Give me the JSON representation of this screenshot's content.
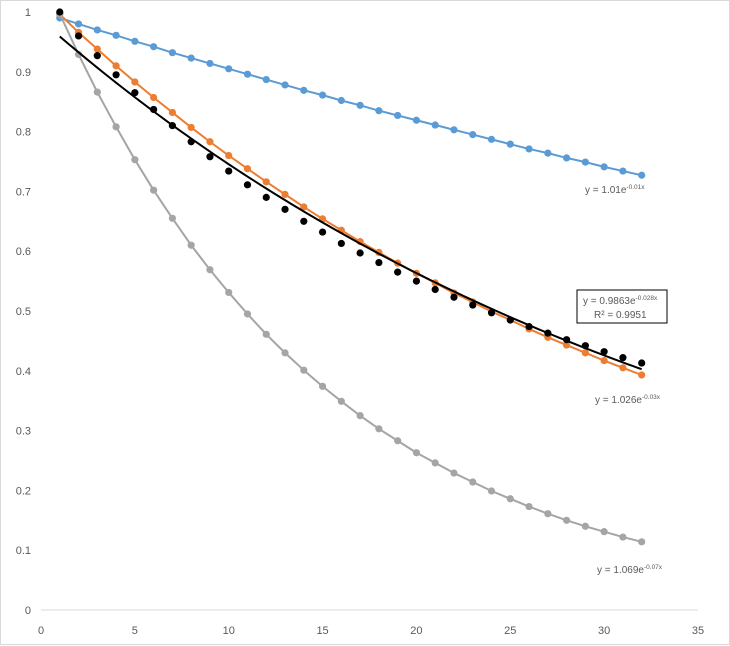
{
  "chart_data": {
    "type": "scatter",
    "title": "",
    "xlabel": "",
    "ylabel": "",
    "xlim": [
      0,
      35
    ],
    "ylim": [
      0,
      1
    ],
    "x_ticks": [
      0,
      5,
      10,
      15,
      20,
      25,
      30,
      35
    ],
    "y_ticks": [
      0,
      0.1,
      0.2,
      0.3,
      0.4,
      0.5,
      0.6,
      0.7,
      0.8,
      0.9,
      1
    ],
    "grid": false,
    "legend": "none",
    "series": [
      {
        "color": "#5b9bd5",
        "kind": "markers+line",
        "x": [
          1,
          2,
          3,
          4,
          5,
          6,
          7,
          8,
          9,
          10,
          11,
          12,
          13,
          14,
          15,
          16,
          17,
          18,
          19,
          20,
          21,
          22,
          23,
          24,
          25,
          26,
          27,
          28,
          29,
          30,
          31,
          32
        ],
        "y": [
          0.99,
          0.98,
          0.97,
          0.961,
          0.951,
          0.942,
          0.932,
          0.923,
          0.914,
          0.905,
          0.896,
          0.887,
          0.878,
          0.869,
          0.861,
          0.852,
          0.844,
          0.835,
          0.827,
          0.819,
          0.811,
          0.803,
          0.795,
          0.787,
          0.779,
          0.771,
          0.764,
          0.756,
          0.749,
          0.741,
          0.734,
          0.727
        ],
        "trendline": {
          "equation_main": "y = 1.01e",
          "equation_exp": "-0.01x"
        }
      },
      {
        "color": "#ed7d31",
        "kind": "markers+line",
        "x": [
          1,
          2,
          3,
          4,
          5,
          6,
          7,
          8,
          9,
          10,
          11,
          12,
          13,
          14,
          15,
          16,
          17,
          18,
          19,
          20,
          21,
          22,
          23,
          24,
          25,
          26,
          27,
          28,
          29,
          30,
          31,
          32
        ],
        "y": [
          0.996,
          0.966,
          0.938,
          0.91,
          0.883,
          0.857,
          0.832,
          0.807,
          0.783,
          0.76,
          0.738,
          0.716,
          0.695,
          0.674,
          0.654,
          0.635,
          0.616,
          0.598,
          0.58,
          0.563,
          0.547,
          0.53,
          0.515,
          0.499,
          0.485,
          0.47,
          0.456,
          0.443,
          0.43,
          0.417,
          0.405,
          0.393
        ],
        "trendline": {
          "equation_main": "y = 1.026e",
          "equation_exp": "-0.03x"
        }
      },
      {
        "color": "#a5a5a5",
        "kind": "markers+line",
        "x": [
          1,
          2,
          3,
          4,
          5,
          6,
          7,
          8,
          9,
          10,
          11,
          12,
          13,
          14,
          15,
          16,
          17,
          18,
          19,
          20,
          21,
          22,
          23,
          24,
          25,
          26,
          27,
          28,
          29,
          30,
          31,
          32
        ],
        "y": [
          0.997,
          0.929,
          0.866,
          0.808,
          0.753,
          0.702,
          0.655,
          0.61,
          0.569,
          0.531,
          0.495,
          0.461,
          0.43,
          0.401,
          0.374,
          0.349,
          0.325,
          0.303,
          0.283,
          0.263,
          0.246,
          0.229,
          0.214,
          0.199,
          0.186,
          0.173,
          0.161,
          0.15,
          0.14,
          0.131,
          0.122,
          0.114
        ],
        "trendline": {
          "equation_main": "y = 1.069e",
          "equation_exp": "-0.07x"
        }
      },
      {
        "color": "#000000",
        "kind": "markers+trendline",
        "x": [
          1,
          2,
          3,
          4,
          5,
          6,
          7,
          8,
          9,
          10,
          11,
          12,
          13,
          14,
          15,
          16,
          17,
          18,
          19,
          20,
          21,
          22,
          23,
          24,
          25,
          26,
          27,
          28,
          29,
          30,
          31,
          32
        ],
        "y": [
          1.0,
          0.96,
          0.927,
          0.895,
          0.865,
          0.837,
          0.81,
          0.783,
          0.758,
          0.734,
          0.711,
          0.69,
          0.67,
          0.65,
          0.632,
          0.613,
          0.597,
          0.581,
          0.565,
          0.55,
          0.536,
          0.523,
          0.51,
          0.497,
          0.485,
          0.474,
          0.463,
          0.452,
          0.442,
          0.432,
          0.422,
          0.413
        ],
        "trendline": {
          "a": 0.9863,
          "b": -0.028,
          "equation_main": "y = 0.9863e",
          "equation_exp": "-0.028x",
          "r2": "R² = 0.9951"
        }
      }
    ]
  }
}
